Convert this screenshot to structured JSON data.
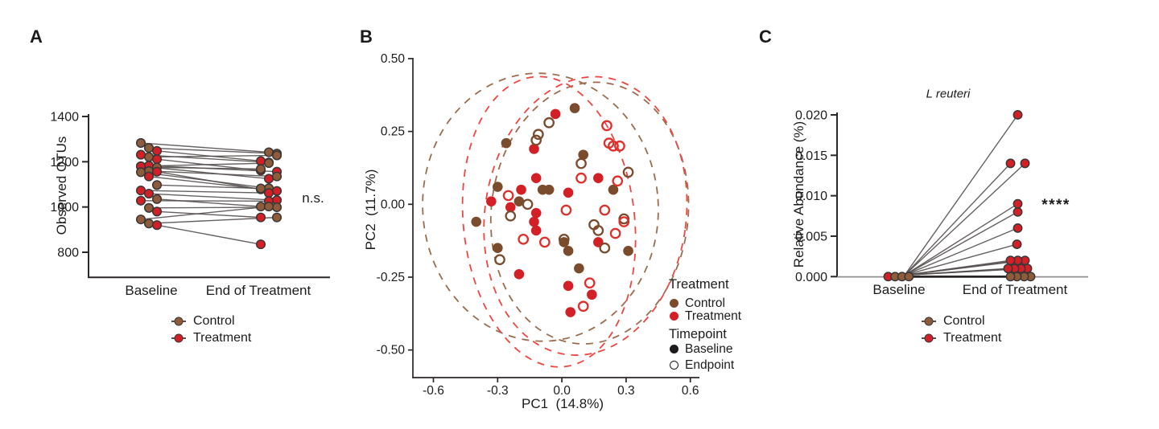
{
  "colors": {
    "control": "#8E5C3A",
    "control_dark": "#7A4B2D",
    "treatment": "#D32027",
    "open_red": "#DE2F2A",
    "ellipse_brown": "#9C6C4E",
    "ellipse_red": "#EF4541",
    "dot_outline": "#3A3637",
    "pair_line": "#55504F",
    "axis": "#2B2728",
    "axis_gray": "#8F8F8F",
    "black": "#1E1B1C"
  },
  "chart_data": [
    {
      "panel_label": "A",
      "type": "paired-dot",
      "ylabel": "Observed OTUs",
      "yticks": [
        "1400",
        "1200",
        "1000",
        "800"
      ],
      "ylim": [
        700,
        1400
      ],
      "categories": [
        "Baseline",
        "End of Treatment"
      ],
      "annotation": "n.s.",
      "legend": [
        {
          "label": "Control",
          "color_key": "control"
        },
        {
          "label": "Treatment",
          "color_key": "treatment"
        }
      ],
      "pairs": [
        {
          "g": "control",
          "b": 1283,
          "e": 1242
        },
        {
          "g": "control",
          "b": 1261,
          "e": 1236
        },
        {
          "g": "treatment",
          "b": 1248,
          "e": 1203
        },
        {
          "g": "treatment",
          "b": 1231,
          "e": 1197
        },
        {
          "g": "control",
          "b": 1221,
          "e": 1228
        },
        {
          "g": "treatment",
          "b": 1211,
          "e": 1161
        },
        {
          "g": "control",
          "b": 1180,
          "e": 1194
        },
        {
          "g": "treatment",
          "b": 1183,
          "e": 1156
        },
        {
          "g": "control",
          "b": 1175,
          "e": 1168
        },
        {
          "g": "treatment",
          "b": 1180,
          "e": 1125
        },
        {
          "g": "control",
          "b": 1159,
          "e": 1135
        },
        {
          "g": "treatment",
          "b": 1156,
          "e": 1078
        },
        {
          "g": "control",
          "b": 1154,
          "e": 1083
        },
        {
          "g": "treatment",
          "b": 1135,
          "e": 1071
        },
        {
          "g": "control",
          "b": 1097,
          "e": 1082
        },
        {
          "g": "treatment",
          "b": 1073,
          "e": 1062
        },
        {
          "g": "treatment",
          "b": 1059,
          "e": 1030
        },
        {
          "g": "control",
          "b": 1035,
          "e": 1002
        },
        {
          "g": "treatment",
          "b": 1028,
          "e": 1026
        },
        {
          "g": "control",
          "b": 996,
          "e": 999
        },
        {
          "g": "treatment",
          "b": 980,
          "e": 954
        },
        {
          "g": "control",
          "b": 945,
          "e": 1002
        },
        {
          "g": "control",
          "b": 927,
          "e": 954
        },
        {
          "g": "treatment",
          "b": 920,
          "e": 835
        }
      ]
    },
    {
      "panel_label": "B",
      "type": "scatter",
      "xlabel": "PC1  (14.8%)",
      "ylabel": "PC2  (11.7%)",
      "xticks": [
        "-0.6",
        "-0.3",
        "0.0",
        "0.3",
        "0.6"
      ],
      "yticks": [
        "0.50",
        "0.25",
        "0.00",
        "-0.25",
        "-0.50"
      ],
      "xlim": [
        -0.7,
        0.65
      ],
      "ylim": [
        -0.6,
        0.55
      ],
      "legend_groups": [
        {
          "header": "Treatment",
          "items": [
            {
              "label": "Control",
              "marker": "filled",
              "color_key": "control_dark"
            },
            {
              "label": "Treatment",
              "marker": "filled",
              "color_key": "treatment"
            }
          ]
        },
        {
          "header": "Timepoint",
          "items": [
            {
              "label": "Baseline",
              "marker": "filled",
              "color_key": "black"
            },
            {
              "label": "Endpoint",
              "marker": "open",
              "color_key": "black"
            }
          ]
        }
      ],
      "ellipses": [
        {
          "cx": -0.1,
          "cy": -0.01,
          "rx": 0.55,
          "ry": 0.46,
          "rot": -4,
          "color_key": "ellipse_brown"
        },
        {
          "cx": 0.13,
          "cy": -0.03,
          "rx": 0.46,
          "ry": 0.45,
          "rot": 6,
          "color_key": "ellipse_brown"
        },
        {
          "cx": -0.06,
          "cy": -0.06,
          "rx": 0.4,
          "ry": 0.5,
          "rot": -6,
          "color_key": "ellipse_red"
        },
        {
          "cx": 0.11,
          "cy": -0.04,
          "rx": 0.47,
          "ry": 0.48,
          "rot": 8,
          "color_key": "ellipse_red"
        }
      ],
      "points": [
        {
          "x": 0.06,
          "y": 0.33,
          "g": "control",
          "t": "baseline"
        },
        {
          "x": -0.26,
          "y": 0.21,
          "g": "control",
          "t": "baseline"
        },
        {
          "x": 0.1,
          "y": 0.17,
          "g": "control",
          "t": "baseline"
        },
        {
          "x": -0.3,
          "y": 0.06,
          "g": "control",
          "t": "baseline"
        },
        {
          "x": -0.09,
          "y": 0.05,
          "g": "control",
          "t": "baseline"
        },
        {
          "x": -0.06,
          "y": 0.05,
          "g": "control",
          "t": "baseline"
        },
        {
          "x": -0.2,
          "y": 0.01,
          "g": "control",
          "t": "baseline"
        },
        {
          "x": -0.4,
          "y": -0.06,
          "g": "control",
          "t": "baseline"
        },
        {
          "x": 0.24,
          "y": 0.05,
          "g": "control",
          "t": "baseline"
        },
        {
          "x": -0.3,
          "y": -0.15,
          "g": "control",
          "t": "baseline"
        },
        {
          "x": 0.01,
          "y": -0.13,
          "g": "control",
          "t": "baseline"
        },
        {
          "x": 0.03,
          "y": -0.16,
          "g": "control",
          "t": "baseline"
        },
        {
          "x": 0.08,
          "y": -0.22,
          "g": "control",
          "t": "baseline"
        },
        {
          "x": 0.31,
          "y": -0.16,
          "g": "control",
          "t": "baseline"
        },
        {
          "x": -0.03,
          "y": 0.31,
          "g": "treatment",
          "t": "baseline"
        },
        {
          "x": -0.13,
          "y": 0.19,
          "g": "treatment",
          "t": "baseline"
        },
        {
          "x": 0.17,
          "y": 0.09,
          "g": "treatment",
          "t": "baseline"
        },
        {
          "x": -0.12,
          "y": 0.09,
          "g": "treatment",
          "t": "baseline"
        },
        {
          "x": -0.19,
          "y": 0.05,
          "g": "treatment",
          "t": "baseline"
        },
        {
          "x": 0.03,
          "y": 0.04,
          "g": "treatment",
          "t": "baseline"
        },
        {
          "x": -0.33,
          "y": 0.01,
          "g": "treatment",
          "t": "baseline"
        },
        {
          "x": -0.24,
          "y": -0.01,
          "g": "treatment",
          "t": "baseline"
        },
        {
          "x": -0.12,
          "y": -0.03,
          "g": "treatment",
          "t": "baseline"
        },
        {
          "x": -0.13,
          "y": -0.06,
          "g": "treatment",
          "t": "baseline"
        },
        {
          "x": -0.12,
          "y": -0.09,
          "g": "treatment",
          "t": "baseline"
        },
        {
          "x": 0.17,
          "y": -0.13,
          "g": "treatment",
          "t": "baseline"
        },
        {
          "x": -0.2,
          "y": -0.24,
          "g": "treatment",
          "t": "baseline"
        },
        {
          "x": 0.03,
          "y": -0.28,
          "g": "treatment",
          "t": "baseline"
        },
        {
          "x": 0.14,
          "y": -0.31,
          "g": "treatment",
          "t": "baseline"
        },
        {
          "x": 0.04,
          "y": -0.37,
          "g": "treatment",
          "t": "baseline"
        },
        {
          "x": -0.06,
          "y": 0.28,
          "g": "control",
          "t": "endpoint"
        },
        {
          "x": -0.11,
          "y": 0.24,
          "g": "control",
          "t": "endpoint"
        },
        {
          "x": -0.12,
          "y": 0.22,
          "g": "control",
          "t": "endpoint"
        },
        {
          "x": 0.09,
          "y": 0.14,
          "g": "control",
          "t": "endpoint"
        },
        {
          "x": 0.31,
          "y": 0.11,
          "g": "control",
          "t": "endpoint"
        },
        {
          "x": -0.16,
          "y": 0.0,
          "g": "control",
          "t": "endpoint"
        },
        {
          "x": -0.24,
          "y": -0.04,
          "g": "control",
          "t": "endpoint"
        },
        {
          "x": 0.15,
          "y": -0.07,
          "g": "control",
          "t": "endpoint"
        },
        {
          "x": 0.17,
          "y": -0.09,
          "g": "control",
          "t": "endpoint"
        },
        {
          "x": 0.29,
          "y": -0.05,
          "g": "control",
          "t": "endpoint"
        },
        {
          "x": 0.2,
          "y": -0.15,
          "g": "control",
          "t": "endpoint"
        },
        {
          "x": -0.29,
          "y": -0.19,
          "g": "control",
          "t": "endpoint"
        },
        {
          "x": 0.01,
          "y": -0.12,
          "g": "control",
          "t": "endpoint"
        },
        {
          "x": 0.21,
          "y": 0.27,
          "g": "treatment",
          "t": "endpoint"
        },
        {
          "x": 0.22,
          "y": 0.21,
          "g": "treatment",
          "t": "endpoint"
        },
        {
          "x": 0.24,
          "y": 0.2,
          "g": "treatment",
          "t": "endpoint"
        },
        {
          "x": 0.27,
          "y": 0.2,
          "g": "treatment",
          "t": "endpoint"
        },
        {
          "x": 0.26,
          "y": 0.08,
          "g": "treatment",
          "t": "endpoint"
        },
        {
          "x": 0.09,
          "y": 0.09,
          "g": "treatment",
          "t": "endpoint"
        },
        {
          "x": -0.25,
          "y": 0.03,
          "g": "treatment",
          "t": "endpoint"
        },
        {
          "x": 0.02,
          "y": -0.02,
          "g": "treatment",
          "t": "endpoint"
        },
        {
          "x": 0.2,
          "y": -0.02,
          "g": "treatment",
          "t": "endpoint"
        },
        {
          "x": 0.25,
          "y": -0.1,
          "g": "treatment",
          "t": "endpoint"
        },
        {
          "x": 0.29,
          "y": -0.06,
          "g": "treatment",
          "t": "endpoint"
        },
        {
          "x": -0.18,
          "y": -0.12,
          "g": "treatment",
          "t": "endpoint"
        },
        {
          "x": -0.08,
          "y": -0.13,
          "g": "treatment",
          "t": "endpoint"
        },
        {
          "x": 0.13,
          "y": -0.27,
          "g": "treatment",
          "t": "endpoint"
        },
        {
          "x": 0.1,
          "y": -0.35,
          "g": "treatment",
          "t": "endpoint"
        }
      ]
    },
    {
      "panel_label": "C",
      "type": "paired-dot",
      "title": "L reuteri",
      "ylabel": "Relative Abundance (%)",
      "yticks": [
        "0.020",
        "0.015",
        "0.010",
        "0.005",
        "0.000"
      ],
      "ylim": [
        0,
        0.02
      ],
      "categories": [
        "Baseline",
        "End of Treatment"
      ],
      "annotation": "****",
      "legend": [
        {
          "label": "Control",
          "color_key": "control"
        },
        {
          "label": "Treatment",
          "color_key": "treatment"
        }
      ],
      "baseline_dots": [
        {
          "g": "treatment"
        },
        {
          "g": "control"
        },
        {
          "g": "control"
        },
        {
          "g": "control"
        }
      ],
      "pairs": [
        {
          "g": "treatment",
          "b": 0,
          "e": 0.02,
          "dx": 0
        },
        {
          "g": "treatment",
          "b": 0,
          "e": 0.014,
          "dx": -9
        },
        {
          "g": "treatment",
          "b": 0,
          "e": 0.014,
          "dx": 9
        },
        {
          "g": "treatment",
          "b": 0,
          "e": 0.009,
          "dx": 0
        },
        {
          "g": "treatment",
          "b": 0,
          "e": 0.008,
          "dx": 0
        },
        {
          "g": "treatment",
          "b": 0,
          "e": 0.006,
          "dx": 0
        },
        {
          "g": "treatment",
          "b": 0,
          "e": 0.004,
          "dx": -1
        },
        {
          "g": "treatment",
          "b": 0,
          "e": 0.002,
          "dx": -9
        },
        {
          "g": "treatment",
          "b": 0,
          "e": 0.002,
          "dx": 0
        },
        {
          "g": "treatment",
          "b": 0,
          "e": 0.002,
          "dx": 9
        },
        {
          "g": "treatment",
          "b": 0,
          "e": 0.001,
          "dx": -12
        },
        {
          "g": "treatment",
          "b": 0,
          "e": 0.001,
          "dx": -4
        },
        {
          "g": "treatment",
          "b": 0,
          "e": 0.001,
          "dx": 4
        },
        {
          "g": "treatment",
          "b": 0,
          "e": 0.001,
          "dx": 12
        },
        {
          "g": "control",
          "b": 0,
          "e": 0,
          "dx": -9
        },
        {
          "g": "control",
          "b": 0,
          "e": 0,
          "dx": -1
        },
        {
          "g": "control",
          "b": 0,
          "e": 0,
          "dx": 8
        },
        {
          "g": "control",
          "b": 0,
          "e": 0,
          "dx": 16
        }
      ]
    }
  ]
}
